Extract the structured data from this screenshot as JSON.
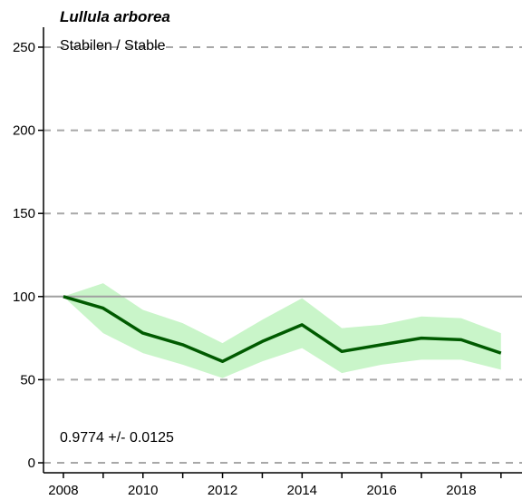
{
  "chart_data": {
    "type": "line",
    "title": "Lullula arborea",
    "subtitle": "Stabilen / Stable",
    "trend_text": "0.9774 +/- 0.0125",
    "xlabel": "",
    "ylabel": "",
    "xlim": [
      2007.5,
      2019.3
    ],
    "ylim": [
      -6,
      262
    ],
    "x_ticks": [
      2008,
      2009,
      2010,
      2011,
      2012,
      2013,
      2014,
      2015,
      2016,
      2017,
      2018,
      2019
    ],
    "x_tick_labels": [
      "2008",
      "2010",
      "2012",
      "2014",
      "2016",
      "2018"
    ],
    "y_ticks": [
      0,
      50,
      100,
      150,
      200,
      250
    ],
    "y_tick_labels": [
      "0",
      "50",
      "100",
      "150",
      "200",
      "250"
    ],
    "reference_line": 100,
    "grid": "horizontal dashed",
    "colors": {
      "line": "#005a00",
      "band": "#c9f5c9",
      "reference": "#a0a0a0",
      "grid": "#a8a8a8"
    },
    "series": [
      {
        "x": [
          2008,
          2009,
          2010,
          2011,
          2012,
          2013,
          2014,
          2015,
          2016,
          2017,
          2018,
          2019
        ],
        "values": [
          100,
          93,
          78,
          71,
          61,
          73,
          83,
          67,
          71,
          75,
          74,
          66
        ],
        "lower": [
          100,
          78,
          66,
          59,
          51,
          61,
          69,
          54,
          59,
          62,
          62,
          56
        ],
        "upper": [
          100,
          108,
          92,
          84,
          72,
          86,
          99,
          81,
          83,
          88,
          87,
          78
        ]
      }
    ]
  }
}
